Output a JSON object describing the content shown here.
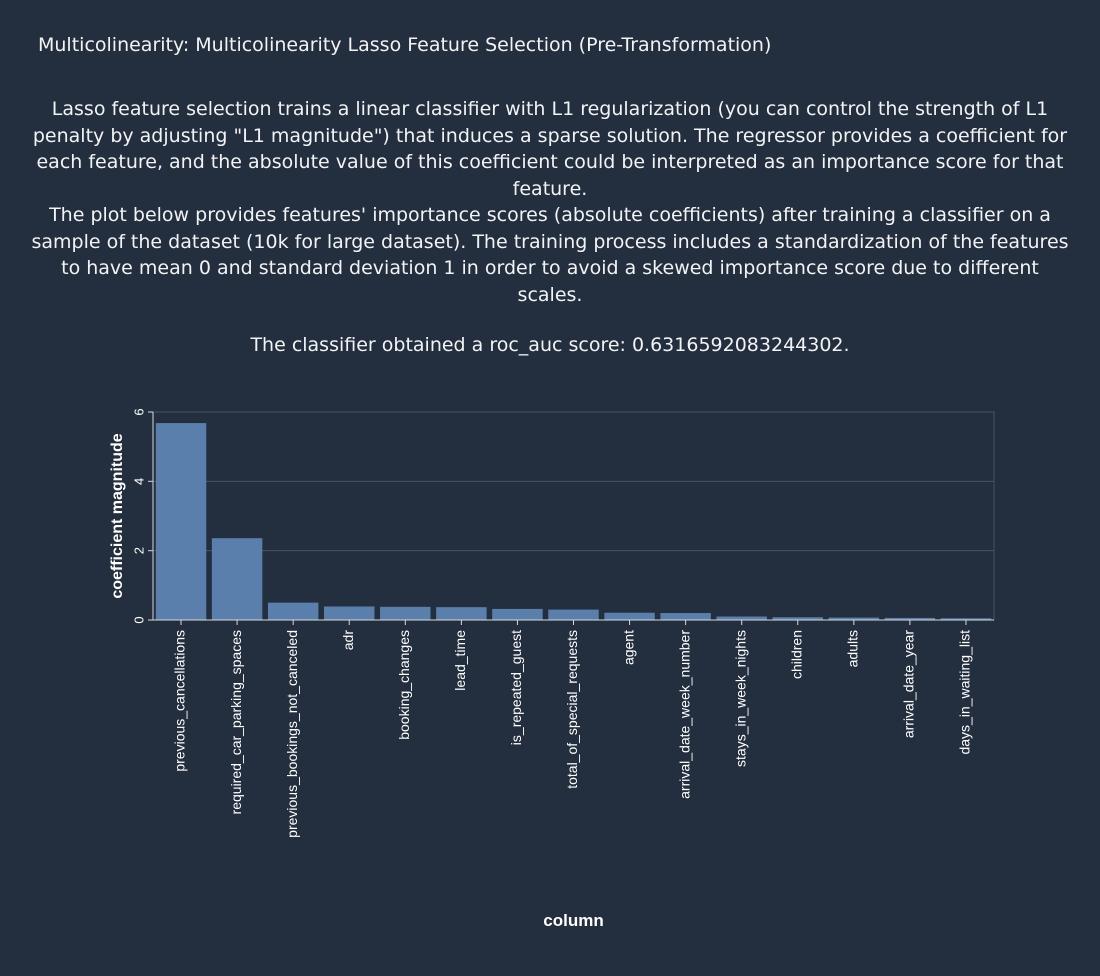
{
  "panel": {
    "title": "Multicolinearity: Multicolinearity Lasso Feature Selection (Pre-Transformation)",
    "description_paragraphs": [
      "Lasso feature selection trains a linear classifier with L1 regularization (you can control the strength of L1 penalty by adjusting \"L1 magnitude\") that induces a sparse solution. The regressor provides a coefficient for each feature, and the absolute value of this coefficient could be interpreted as an importance score for that feature.",
      "The plot below provides features' importance scores (absolute coefficients) after training a classifier on a sample of the dataset (10k for large dataset). The training process includes a standardization of the features to have mean 0 and standard deviation 1 in order to avoid a skewed importance score due to different scales."
    ],
    "score_text": "The classifier obtained a roc_auc score: 0.6316592083244302."
  },
  "chart_data": {
    "type": "bar",
    "xlabel": "column",
    "ylabel": "coefficient magnitude",
    "ylim": [
      0,
      6
    ],
    "yticks": [
      0,
      2,
      4,
      6
    ],
    "grid": true,
    "bar_color": "#5b7fad",
    "categories": [
      "previous_cancellations",
      "required_car_parking_spaces",
      "previous_bookings_not_canceled",
      "adr",
      "booking_changes",
      "lead_time",
      "is_repeated_guest",
      "total_of_special_requests",
      "agent",
      "arrival_date_week_number",
      "stays_in_week_nights",
      "children",
      "adults",
      "arrival_date_year",
      "days_in_waiting_list"
    ],
    "values": [
      5.68,
      2.36,
      0.5,
      0.39,
      0.38,
      0.37,
      0.32,
      0.3,
      0.21,
      0.2,
      0.1,
      0.08,
      0.07,
      0.06,
      0.05
    ]
  }
}
